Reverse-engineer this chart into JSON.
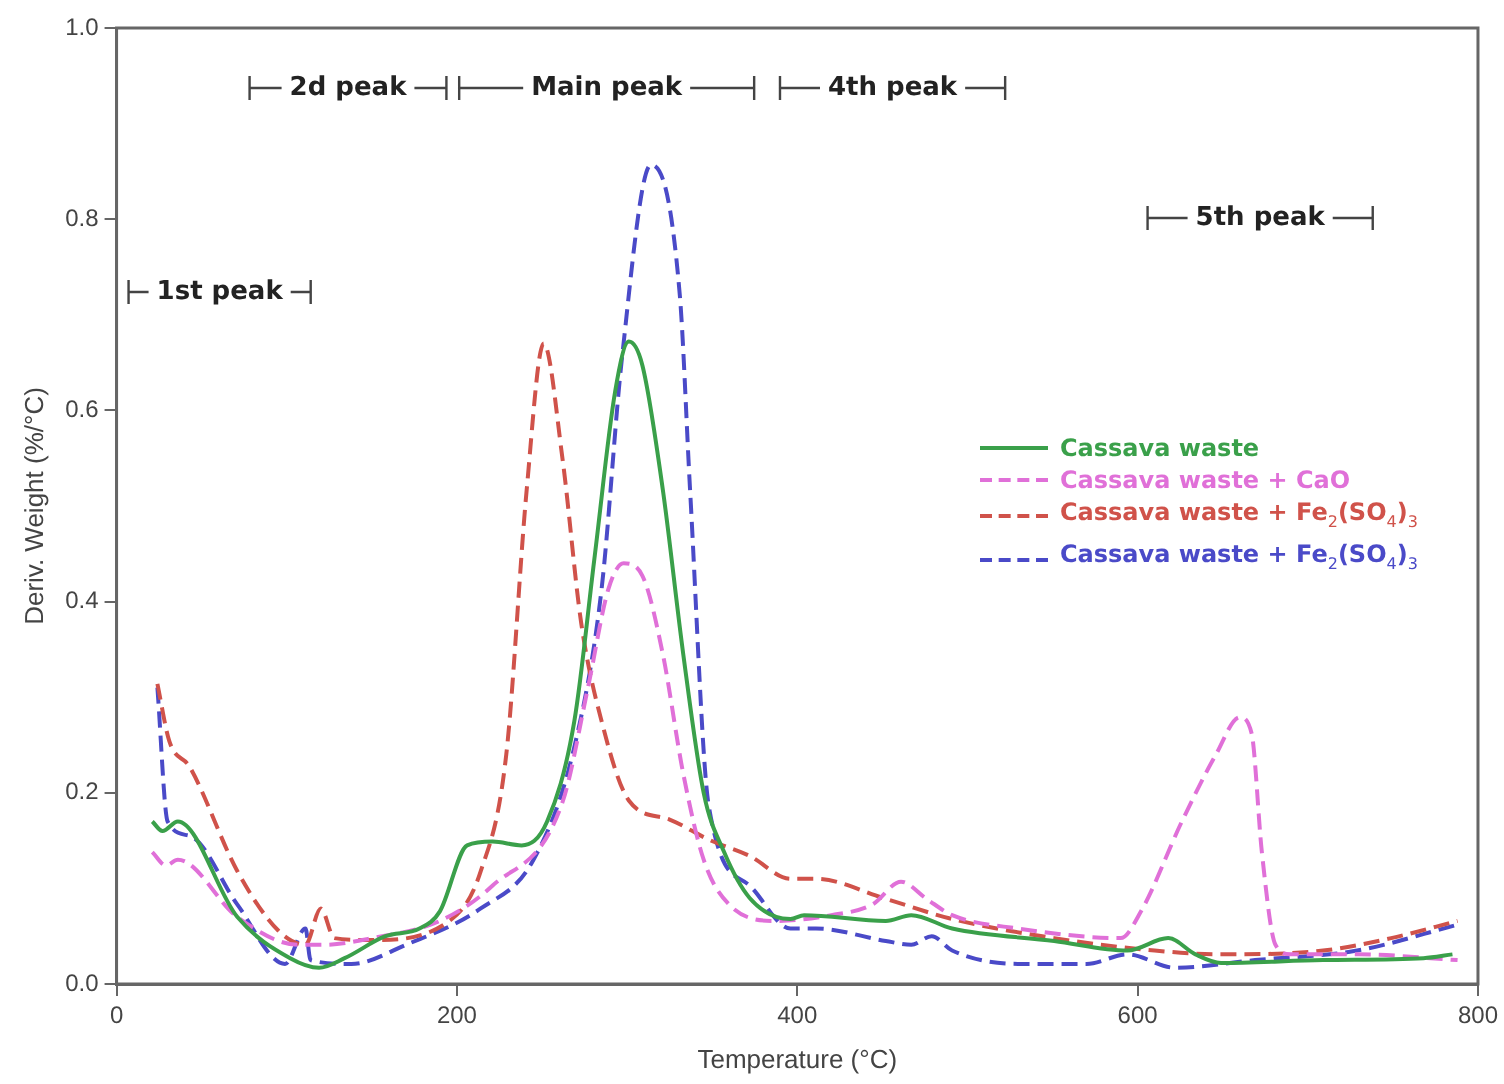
{
  "chart_data": {
    "type": "line",
    "xlabel": "Temperature (°C)",
    "ylabel": "Deriv. Weight (%/°C)",
    "xlim": [
      0,
      800
    ],
    "xticks": [
      0,
      200,
      400,
      600,
      800
    ],
    "ylim": [
      0,
      1.0
    ],
    "yticks": [
      {
        "value": 0,
        "label": "0.0"
      },
      {
        "value": 0.2,
        "label": "0.2"
      },
      {
        "value": 0.4,
        "label": "0.4"
      },
      {
        "value": 0.6,
        "label": "0.6"
      },
      {
        "value": 0.8,
        "label": "0.8"
      },
      {
        "value": 1.0,
        "label": "1.0"
      }
    ],
    "legend": "right",
    "marker": "none",
    "annotations": [
      "1st peak",
      "2d peak",
      "Main peak",
      "4th peak",
      "5th peak"
    ],
    "series": [
      {
        "name": "Cassava waste",
        "color": "#3aa04a",
        "line_style": "solid",
        "x": [
          21,
          27,
          36,
          71,
          102,
          119,
          134,
          158,
          178,
          190,
          206,
          221,
          238,
          253,
          269,
          281,
          293,
          301,
          309,
          321,
          333,
          345,
          357,
          372,
          396,
          404,
          452,
          467,
          491,
          551,
          594,
          618,
          634,
          649,
          709,
          768,
          785
        ],
        "values": [
          0.17,
          0.16,
          0.17,
          0.07,
          0.027,
          0.017,
          0.027,
          0.05,
          0.058,
          0.076,
          0.145,
          0.149,
          0.145,
          0.17,
          0.275,
          0.448,
          0.62,
          0.672,
          0.647,
          0.517,
          0.345,
          0.2,
          0.138,
          0.09,
          0.068,
          0.072,
          0.066,
          0.072,
          0.058,
          0.045,
          0.035,
          0.048,
          0.031,
          0.022,
          0.025,
          0.027,
          0.031
        ]
      },
      {
        "name": "Cassava waste + CaO",
        "color": "#e070d8",
        "line_style": "dashed",
        "x": [
          21,
          29,
          36,
          71,
          107,
          122,
          150,
          190,
          221,
          262,
          277,
          289,
          298,
          309,
          321,
          333,
          345,
          360,
          388,
          420,
          444,
          461,
          476,
          491,
          530,
          590,
          602,
          626,
          646,
          660,
          667,
          673,
          681,
          690,
          730,
          788
        ],
        "values": [
          0.138,
          0.124,
          0.13,
          0.07,
          0.041,
          0.041,
          0.048,
          0.066,
          0.103,
          0.19,
          0.31,
          0.413,
          0.44,
          0.427,
          0.345,
          0.22,
          0.13,
          0.083,
          0.066,
          0.072,
          0.083,
          0.107,
          0.089,
          0.072,
          0.058,
          0.048,
          0.076,
          0.17,
          0.24,
          0.279,
          0.262,
          0.138,
          0.041,
          0.031,
          0.031,
          0.025
        ]
      },
      {
        "name": "Cassava waste + Fe$_{2}$(SO$_{4}$)$_{3}$",
        "color": "#d0524a",
        "line_style": "dashed",
        "x": [
          24,
          31,
          43,
          71,
          95,
          111,
          120,
          128,
          150,
          197,
          214,
          229,
          241,
          251,
          262,
          273,
          285,
          301,
          325,
          348,
          372,
          396,
          411,
          452,
          491,
          551,
          610,
          649,
          709,
          749,
          788
        ],
        "values": [
          0.314,
          0.254,
          0.227,
          0.118,
          0.056,
          0.041,
          0.079,
          0.048,
          0.046,
          0.068,
          0.118,
          0.24,
          0.517,
          0.67,
          0.55,
          0.378,
          0.275,
          0.192,
          0.172,
          0.151,
          0.134,
          0.11,
          0.11,
          0.089,
          0.068,
          0.048,
          0.035,
          0.031,
          0.035,
          0.048,
          0.066
        ]
      },
      {
        "name": "Cassava waste + Fe$_{2}$(SO$_{4}$)$_{3}$",
        "color": "#4a4ac8",
        "line_style": "dashed",
        "x": [
          24,
          30,
          43,
          71,
          99,
          111,
          114,
          138,
          170,
          214,
          245,
          269,
          285,
          297,
          314,
          331,
          337,
          348,
          372,
          396,
          411,
          452,
          467,
          479,
          491,
          530,
          570,
          594,
          622,
          669,
          729,
          788
        ],
        "values": [
          0.31,
          0.17,
          0.155,
          0.083,
          0.021,
          0.058,
          0.025,
          0.021,
          0.041,
          0.079,
          0.13,
          0.248,
          0.413,
          0.655,
          0.857,
          0.72,
          0.517,
          0.186,
          0.103,
          0.058,
          0.058,
          0.045,
          0.041,
          0.05,
          0.035,
          0.021,
          0.021,
          0.031,
          0.017,
          0.025,
          0.035,
          0.062
        ]
      }
    ]
  }
}
